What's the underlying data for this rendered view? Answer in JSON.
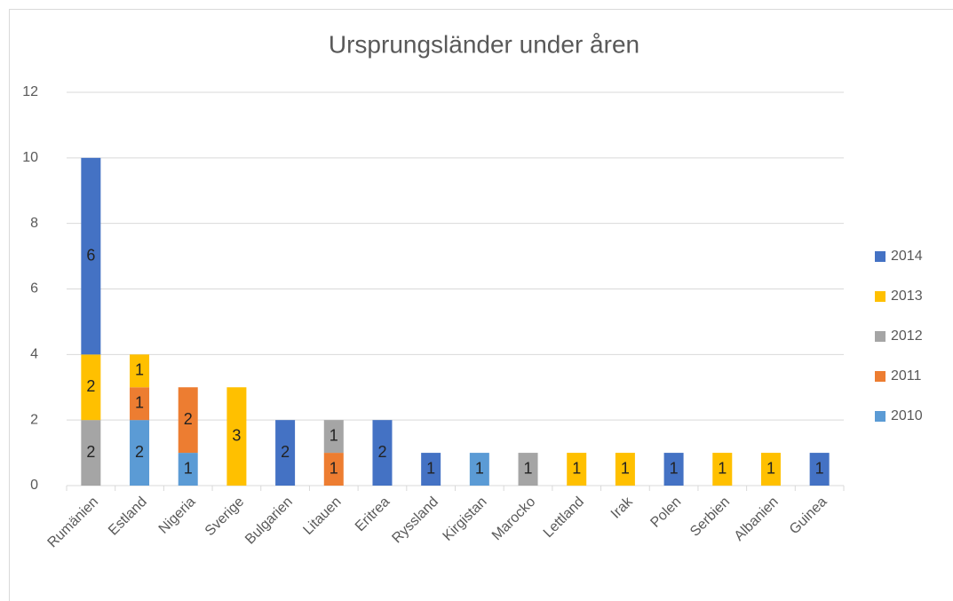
{
  "chart_data": {
    "type": "bar",
    "stacked": true,
    "title": "Ursprungsländer under åren",
    "categories": [
      "Rumänien",
      "Estland",
      "Nigeria",
      "Sverige",
      "Bulgarien",
      "Litauen",
      "Eritrea",
      "Ryssland",
      "Kirgistan",
      "Marocko",
      "Lettland",
      "Irak",
      "Polen",
      "Serbien",
      "Albanien",
      "Guinea"
    ],
    "series": [
      {
        "name": "2010",
        "color": "#5b9bd5",
        "values": [
          null,
          2,
          1,
          null,
          null,
          null,
          null,
          null,
          1,
          null,
          null,
          null,
          null,
          null,
          null,
          null
        ]
      },
      {
        "name": "2011",
        "color": "#ed7d31",
        "values": [
          null,
          1,
          2,
          null,
          null,
          1,
          null,
          null,
          null,
          null,
          null,
          null,
          null,
          null,
          null,
          null
        ]
      },
      {
        "name": "2012",
        "color": "#a5a5a5",
        "values": [
          2,
          null,
          null,
          null,
          null,
          1,
          null,
          null,
          null,
          1,
          null,
          null,
          null,
          null,
          null,
          null
        ]
      },
      {
        "name": "2013",
        "color": "#ffc000",
        "values": [
          2,
          1,
          null,
          3,
          null,
          null,
          null,
          null,
          null,
          null,
          1,
          1,
          null,
          1,
          1,
          null
        ]
      },
      {
        "name": "2014",
        "color": "#4472c4",
        "values": [
          6,
          null,
          null,
          null,
          2,
          null,
          2,
          1,
          null,
          null,
          null,
          null,
          1,
          null,
          null,
          1
        ]
      }
    ],
    "ylim": [
      0,
      12
    ],
    "yticks": [
      0,
      2,
      4,
      6,
      8,
      10,
      12
    ],
    "grid": true,
    "legend": "right"
  }
}
